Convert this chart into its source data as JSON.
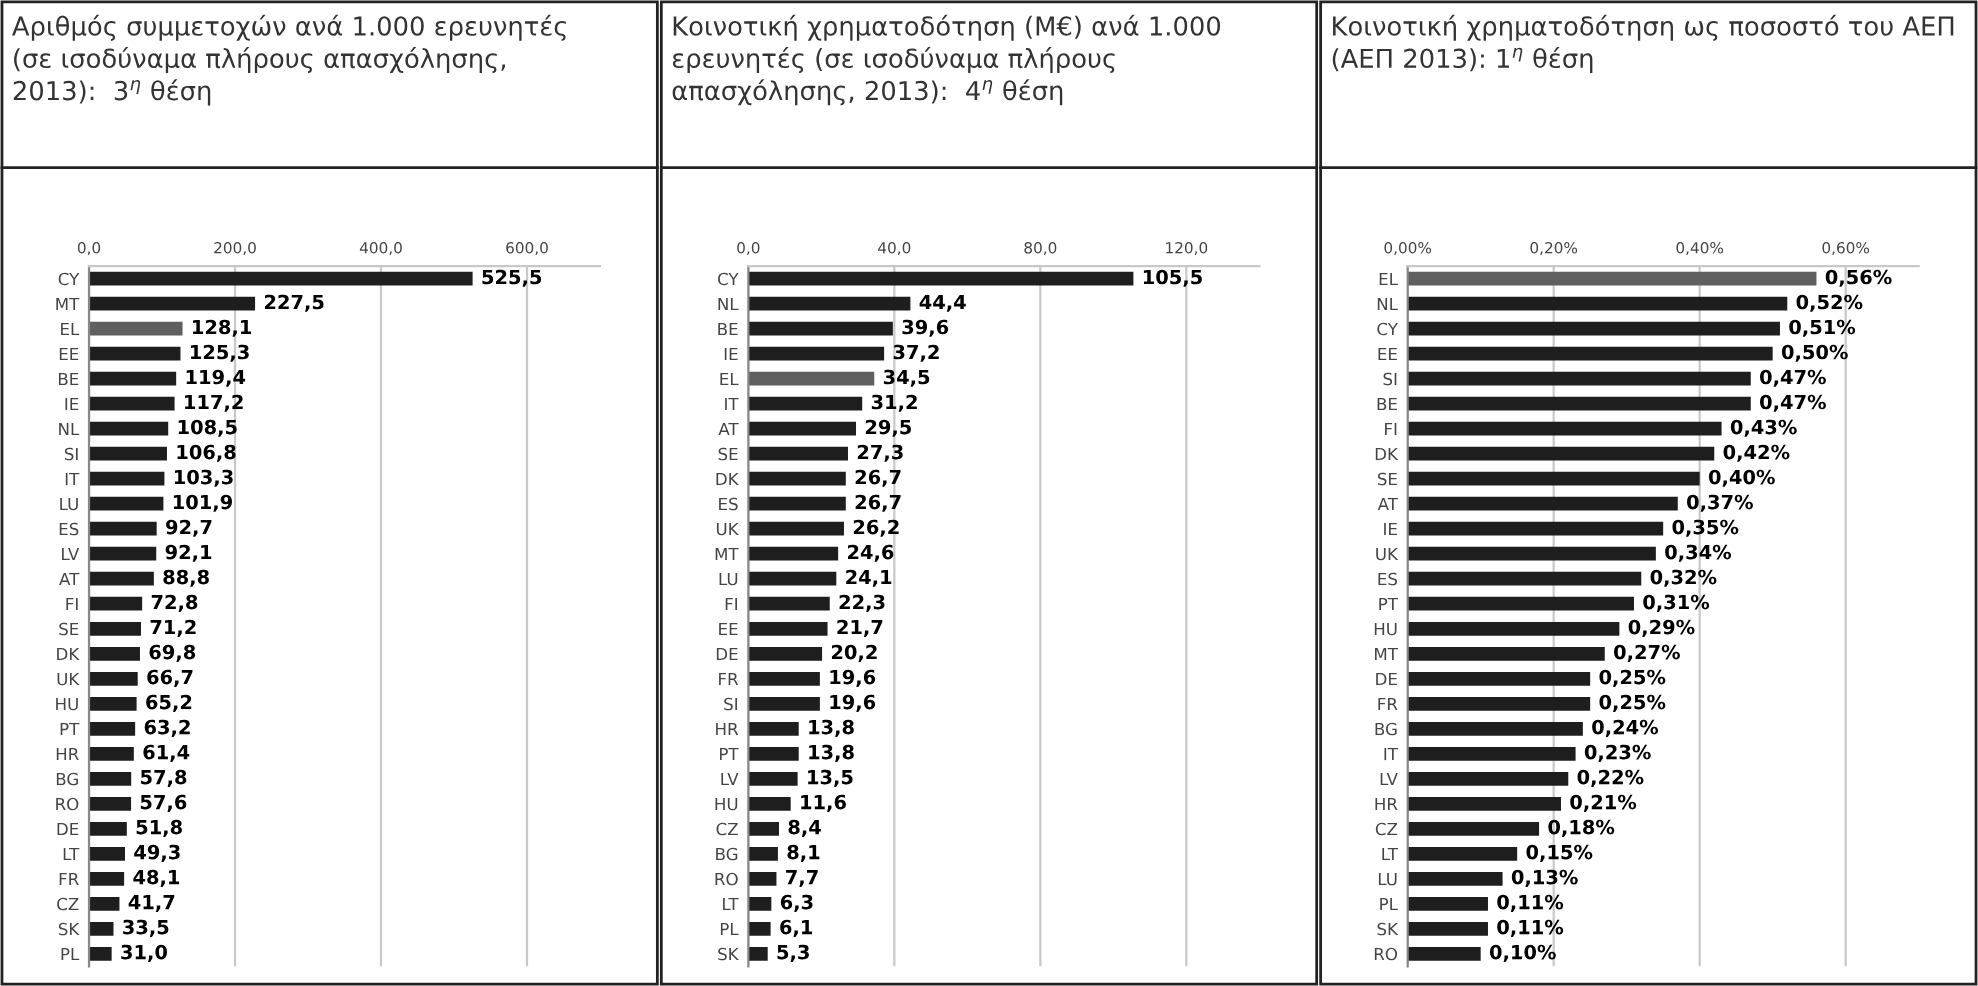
{
  "chart_data": [
    {
      "type": "bar",
      "orientation": "horizontal",
      "title": "Αριθμός συμμετοχών ανά 1.000 ερευνητές\n(σε ισοδύναμα πλήρους απασχόλησης,\n2013):  3$^{η}$ θέση",
      "categories": [
        "CY",
        "MT",
        "EL",
        "EE",
        "BE",
        "IE",
        "NL",
        "SI",
        "IT",
        "LU",
        "ES",
        "LV",
        "AT",
        "FI",
        "SE",
        "DK",
        "UK",
        "HU",
        "PT",
        "HR",
        "BG",
        "RO",
        "DE",
        "LT",
        "FR",
        "CZ",
        "SK",
        "PL"
      ],
      "values": [
        525.5,
        227.5,
        128.1,
        125.3,
        119.4,
        117.2,
        108.5,
        106.8,
        103.3,
        101.9,
        92.7,
        92.1,
        88.8,
        72.8,
        71.2,
        69.8,
        66.7,
        65.2,
        63.2,
        61.4,
        57.8,
        57.6,
        51.8,
        49.3,
        48.1,
        41.7,
        33.5,
        31.0
      ],
      "value_labels": [
        "525,5",
        "227,5",
        "128,1",
        "125,3",
        "119,4",
        "117,2",
        "108,5",
        "106,8",
        "103,3",
        "101,9",
        "92,7",
        "92,1",
        "88,8",
        "72,8",
        "71,2",
        "69,8",
        "66,7",
        "65,2",
        "63,2",
        "61,4",
        "57,8",
        "57,6",
        "51,8",
        "49,3",
        "48,1",
        "41,7",
        "33,5",
        "31,0"
      ],
      "colors": [
        "#1e1e1e",
        "#1e1e1e",
        "#5f5f5f",
        "#1e1e1e",
        "#1e1e1e",
        "#1e1e1e",
        "#1e1e1e",
        "#1e1e1e",
        "#1e1e1e",
        "#1e1e1e",
        "#1e1e1e",
        "#1e1e1e",
        "#1e1e1e",
        "#1e1e1e",
        "#1e1e1e",
        "#1e1e1e",
        "#1e1e1e",
        "#1e1e1e",
        "#1e1e1e",
        "#1e1e1e",
        "#1e1e1e",
        "#1e1e1e",
        "#1e1e1e",
        "#1e1e1e",
        "#1e1e1e",
        "#1e1e1e",
        "#1e1e1e",
        "#1e1e1e"
      ],
      "xlim": [
        0,
        700
      ],
      "xticks": [
        {
          "value": 0,
          "label": "0,0"
        },
        {
          "value": 200,
          "label": "200,0"
        },
        {
          "value": 400,
          "label": "400,0"
        },
        {
          "value": 600,
          "label": "600,0"
        }
      ],
      "grid": "x"
    },
    {
      "type": "bar",
      "orientation": "horizontal",
      "title": "Κοινοτική χρηματοδότηση (Μ€) ανά 1.000\nερευνητές (σε ισοδύναμα πλήρους\nαπασχόλησης, 2013):  4$^{η}$ θέση",
      "categories": [
        "CY",
        "NL",
        "BE",
        "IE",
        "EL",
        "IT",
        "AT",
        "SE",
        "DK",
        "ES",
        "UK",
        "MT",
        "LU",
        "FI",
        "EE",
        "DE",
        "FR",
        "SI",
        "HR",
        "PT",
        "LV",
        "HU",
        "CZ",
        "BG",
        "RO",
        "LT",
        "PL",
        "SK"
      ],
      "values": [
        105.5,
        44.4,
        39.6,
        37.2,
        34.5,
        31.2,
        29.5,
        27.3,
        26.7,
        26.7,
        26.2,
        24.6,
        24.1,
        22.3,
        21.7,
        20.2,
        19.6,
        19.6,
        13.8,
        13.8,
        13.5,
        11.6,
        8.4,
        8.1,
        7.7,
        6.3,
        6.1,
        5.3
      ],
      "value_labels": [
        "105,5",
        "44,4",
        "39,6",
        "37,2",
        "34,5",
        "31,2",
        "29,5",
        "27,3",
        "26,7",
        "26,7",
        "26,2",
        "24,6",
        "24,1",
        "22,3",
        "21,7",
        "20,2",
        "19,6",
        "19,6",
        "13,8",
        "13,8",
        "13,5",
        "11,6",
        "8,4",
        "8,1",
        "7,7",
        "6,3",
        "6,1",
        "5,3"
      ],
      "colors": [
        "#1e1e1e",
        "#1e1e1e",
        "#1e1e1e",
        "#1e1e1e",
        "#5f5f5f",
        "#1e1e1e",
        "#1e1e1e",
        "#1e1e1e",
        "#1e1e1e",
        "#1e1e1e",
        "#1e1e1e",
        "#1e1e1e",
        "#1e1e1e",
        "#1e1e1e",
        "#1e1e1e",
        "#1e1e1e",
        "#1e1e1e",
        "#1e1e1e",
        "#1e1e1e",
        "#1e1e1e",
        "#1e1e1e",
        "#1e1e1e",
        "#1e1e1e",
        "#1e1e1e",
        "#1e1e1e",
        "#1e1e1e",
        "#1e1e1e",
        "#1e1e1e"
      ],
      "xlim": [
        0,
        140
      ],
      "xticks": [
        {
          "value": 0,
          "label": "0,0"
        },
        {
          "value": 40,
          "label": "40,0"
        },
        {
          "value": 80,
          "label": "80,0"
        },
        {
          "value": 120,
          "label": "120,0"
        }
      ],
      "grid": "x"
    },
    {
      "type": "bar",
      "orientation": "horizontal",
      "title": "Κοινοτική χρηματοδότηση ως ποσοστό του ΑΕΠ\n(ΑΕΠ 2013): 1$^{η}$ θέση",
      "categories": [
        "EL",
        "NL",
        "CY",
        "EE",
        "SI",
        "BE",
        "FI",
        "DK",
        "SE",
        "AT",
        "IE",
        "UK",
        "ES",
        "PT",
        "HU",
        "MT",
        "DE",
        "FR",
        "BG",
        "IT",
        "LV",
        "HR",
        "CZ",
        "LT",
        "LU",
        "PL",
        "SK",
        "RO"
      ],
      "values": [
        0.56,
        0.52,
        0.51,
        0.5,
        0.47,
        0.47,
        0.43,
        0.42,
        0.4,
        0.37,
        0.35,
        0.34,
        0.32,
        0.31,
        0.29,
        0.27,
        0.25,
        0.25,
        0.24,
        0.23,
        0.22,
        0.21,
        0.18,
        0.15,
        0.13,
        0.11,
        0.11,
        0.1
      ],
      "value_labels": [
        "0,56%",
        "0,52%",
        "0,51%",
        "0,50%",
        "0,47%",
        "0,47%",
        "0,43%",
        "0,42%",
        "0,40%",
        "0,37%",
        "0,35%",
        "0,34%",
        "0,32%",
        "0,31%",
        "0,29%",
        "0,27%",
        "0,25%",
        "0,25%",
        "0,24%",
        "0,23%",
        "0,22%",
        "0,21%",
        "0,18%",
        "0,15%",
        "0,13%",
        "0,11%",
        "0,11%",
        "0,10%"
      ],
      "colors": [
        "#5f5f5f",
        "#1e1e1e",
        "#1e1e1e",
        "#1e1e1e",
        "#1e1e1e",
        "#1e1e1e",
        "#1e1e1e",
        "#1e1e1e",
        "#1e1e1e",
        "#1e1e1e",
        "#1e1e1e",
        "#1e1e1e",
        "#1e1e1e",
        "#1e1e1e",
        "#1e1e1e",
        "#1e1e1e",
        "#1e1e1e",
        "#1e1e1e",
        "#1e1e1e",
        "#1e1e1e",
        "#1e1e1e",
        "#1e1e1e",
        "#1e1e1e",
        "#1e1e1e",
        "#1e1e1e",
        "#1e1e1e",
        "#1e1e1e",
        "#1e1e1e"
      ],
      "xlim": [
        0,
        0.7
      ],
      "xticks": [
        {
          "value": 0,
          "label": "0,00%"
        },
        {
          "value": 0.2,
          "label": "0,20%"
        },
        {
          "value": 0.4,
          "label": "0,40%"
        },
        {
          "value": 0.6,
          "label": "0,60%"
        }
      ],
      "grid": "x"
    }
  ]
}
